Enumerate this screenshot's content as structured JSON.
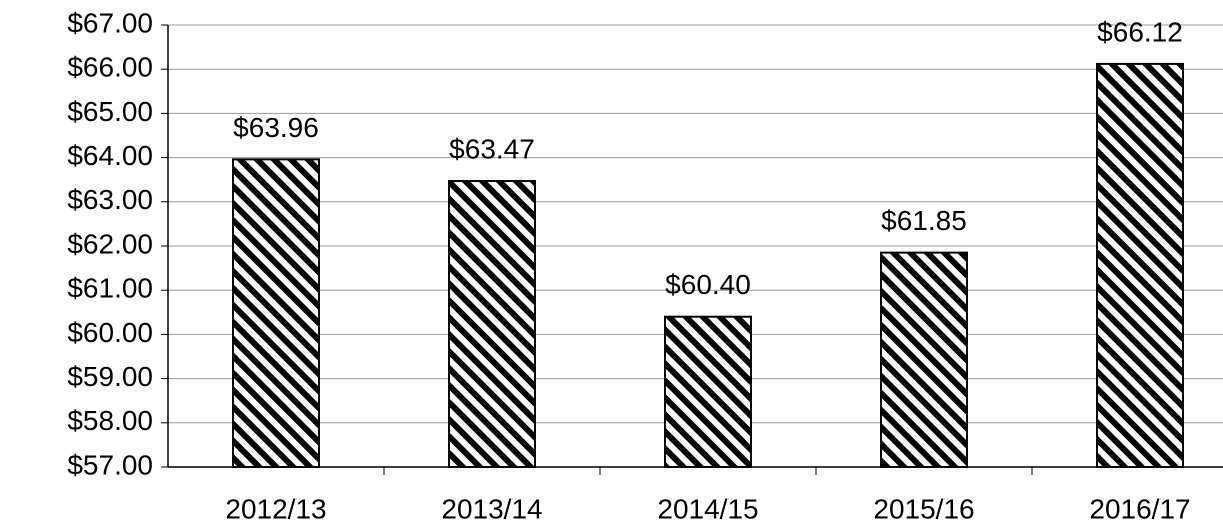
{
  "chart_data": {
    "type": "bar",
    "categories": [
      "2012/13",
      "2013/14",
      "2014/15",
      "2015/16",
      "2016/17"
    ],
    "values": [
      63.96,
      63.47,
      60.4,
      61.85,
      66.12
    ],
    "value_labels": [
      "$63.96",
      "$63.47",
      "$60.40",
      "$61.85",
      "$66.12"
    ],
    "color": "#000000",
    "ylim": [
      57,
      67
    ],
    "yticks": [
      {
        "value": 57,
        "label": "$57.00"
      },
      {
        "value": 58,
        "label": "$58.00"
      },
      {
        "value": 59,
        "label": "$59.00"
      },
      {
        "value": 60,
        "label": "$60.00"
      },
      {
        "value": 61,
        "label": "$61.00"
      },
      {
        "value": 62,
        "label": "$62.00"
      },
      {
        "value": 63,
        "label": "$63.00"
      },
      {
        "value": 64,
        "label": "$64.00"
      },
      {
        "value": 65,
        "label": "$65.00"
      },
      {
        "value": 66,
        "label": "$66.00"
      },
      {
        "value": 67,
        "label": "$67.00"
      }
    ],
    "grid": true
  }
}
